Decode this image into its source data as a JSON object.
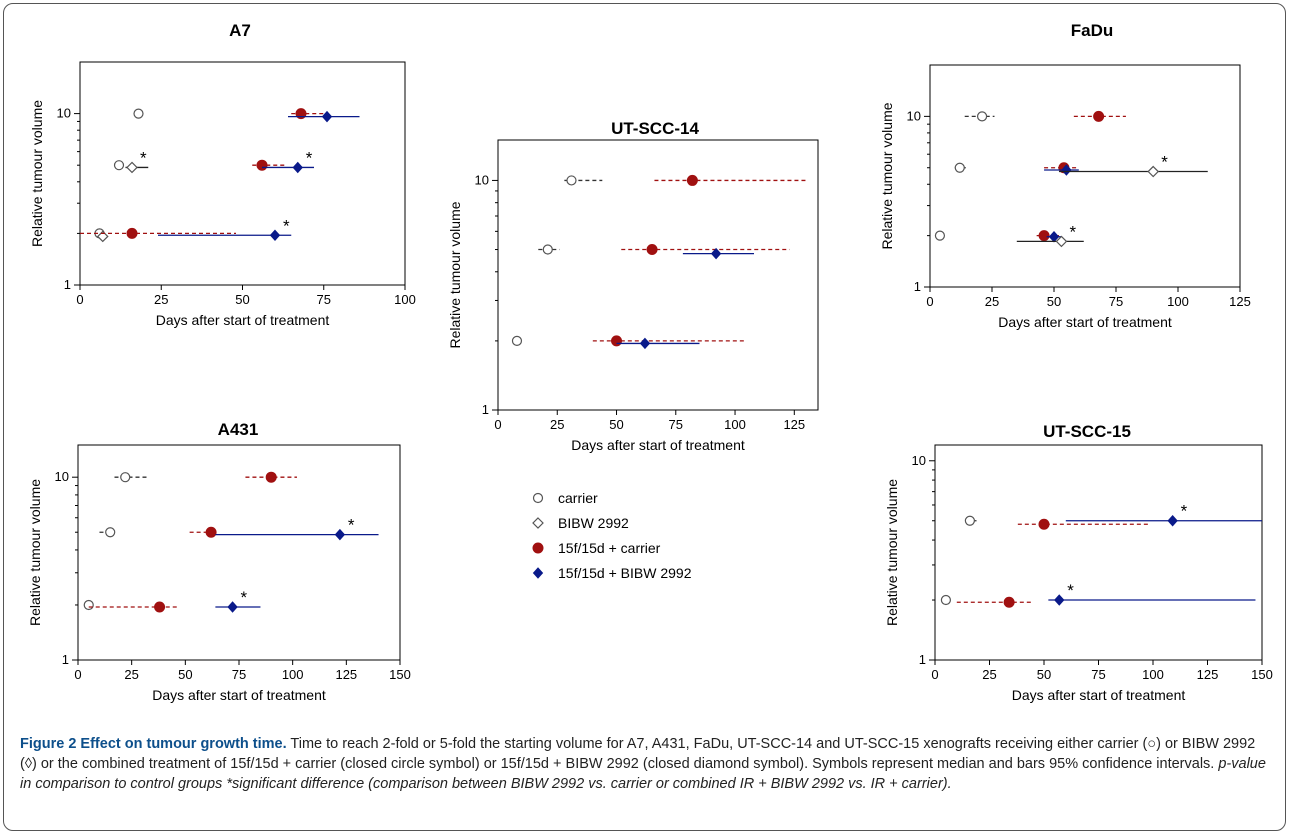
{
  "legend": {
    "items": [
      {
        "label": "carrier",
        "symbol": "open-circle",
        "color": "#555555"
      },
      {
        "label": "BIBW 2992",
        "symbol": "open-diamond",
        "color": "#555555"
      },
      {
        "label": "15f/15d + carrier",
        "symbol": "filled-circle",
        "color": "#a01010"
      },
      {
        "label": "15f/15d + BIBW 2992",
        "symbol": "filled-diamond",
        "color": "#0a1a8a"
      }
    ]
  },
  "caption": {
    "title": "Figure 2 Effect on tumour growth time.",
    "body": " Time to reach 2-fold or 5-fold the starting volume for A7, A431, FaDu, UT-SCC-14 and UT-SCC-15 xenografts receiving either carrier (○) or BIBW 2992 (◊) or the combined treatment of 15f/15d + carrier (closed circle symbol) or 15f/15d + BIBW 2992 (closed diamond symbol). Symbols represent median and bars 95% confidence intervals. ",
    "italic": "p-value in comparison to control groups *significant difference (comparison between BIBW 2992 vs. carrier or combined IR + BIBW 2992 vs. IR + carrier)."
  },
  "colors": {
    "carrier": "#555555",
    "bibw": "#555555",
    "ir_carrier": "#a01010",
    "ir_bibw": "#0a1a8a"
  },
  "chart_data": [
    {
      "id": "A7",
      "type": "scatter",
      "title": "A7",
      "xlabel": "Days after start of treatment",
      "ylabel": "Relative tumour volume",
      "xlim": [
        0,
        100
      ],
      "xticks": [
        0,
        25,
        50,
        75,
        100
      ],
      "ylim": [
        1,
        20
      ],
      "yscale": "log",
      "yticks": [
        1,
        10
      ],
      "points": [
        {
          "group": "carrier",
          "x": 18,
          "y": 10
        },
        {
          "group": "ir_carrier",
          "x": 68,
          "y": 10,
          "ci": [
            65,
            75
          ]
        },
        {
          "group": "ir_bibw",
          "x": 76,
          "y": 9.6,
          "ci": [
            64,
            86
          ]
        },
        {
          "group": "carrier",
          "x": 12,
          "y": 5
        },
        {
          "group": "bibw",
          "x": 16,
          "y": 4.85,
          "ci": [
            14,
            21
          ],
          "sig": "*"
        },
        {
          "group": "ir_carrier",
          "x": 56,
          "y": 5,
          "ci": [
            53,
            63
          ]
        },
        {
          "group": "ir_bibw",
          "x": 67,
          "y": 4.85,
          "ci": [
            56,
            72
          ],
          "sig": "*"
        },
        {
          "group": "carrier",
          "x": 6,
          "y": 2
        },
        {
          "group": "bibw",
          "x": 7,
          "y": 1.92
        },
        {
          "group": "ir_carrier",
          "x": 16,
          "y": 2,
          "ci": [
            0,
            48
          ]
        },
        {
          "group": "ir_bibw",
          "x": 60,
          "y": 1.95,
          "ci": [
            24,
            65
          ],
          "sig": "*"
        }
      ]
    },
    {
      "id": "UT-SCC-14",
      "type": "scatter",
      "title": "UT-SCC-14",
      "xlabel": "Days after start of treatment",
      "ylabel": "Relative tumour volume",
      "xlim": [
        0,
        135
      ],
      "xticks": [
        0,
        25,
        50,
        75,
        100,
        125
      ],
      "ylim": [
        1,
        15
      ],
      "yscale": "log",
      "yticks": [
        1,
        10
      ],
      "points": [
        {
          "group": "carrier",
          "x": 31,
          "y": 10,
          "ci": [
            28,
            44
          ]
        },
        {
          "group": "ir_carrier",
          "x": 82,
          "y": 10,
          "ci": [
            66,
            130
          ]
        },
        {
          "group": "carrier",
          "x": 21,
          "y": 5,
          "ci": [
            17,
            26
          ]
        },
        {
          "group": "ir_carrier",
          "x": 65,
          "y": 5,
          "ci": [
            52,
            123
          ]
        },
        {
          "group": "ir_bibw",
          "x": 92,
          "y": 4.8,
          "ci": [
            78,
            108
          ]
        },
        {
          "group": "carrier",
          "x": 8,
          "y": 2
        },
        {
          "group": "ir_carrier",
          "x": 50,
          "y": 2,
          "ci": [
            40,
            104
          ]
        },
        {
          "group": "ir_bibw",
          "x": 62,
          "y": 1.95,
          "ci": [
            50,
            85
          ]
        }
      ]
    },
    {
      "id": "FaDu",
      "type": "scatter",
      "title": "FaDu",
      "xlabel": "Days after start of treatment",
      "ylabel": "Relative tumour volume",
      "xlim": [
        0,
        125
      ],
      "xticks": [
        0,
        25,
        50,
        75,
        100,
        125
      ],
      "ylim": [
        1,
        20
      ],
      "yscale": "log",
      "yticks": [
        1,
        10
      ],
      "points": [
        {
          "group": "carrier",
          "x": 21,
          "y": 10,
          "ci": [
            14,
            26
          ]
        },
        {
          "group": "ir_carrier",
          "x": 68,
          "y": 10,
          "ci": [
            58,
            79
          ]
        },
        {
          "group": "carrier",
          "x": 12,
          "y": 5,
          "ci": [
            10,
            15
          ]
        },
        {
          "group": "ir_carrier",
          "x": 54,
          "y": 5,
          "ci": [
            46,
            59
          ]
        },
        {
          "group": "ir_bibw",
          "x": 55,
          "y": 4.85,
          "ci": [
            46,
            60
          ]
        },
        {
          "group": "bibw",
          "x": 90,
          "y": 4.75,
          "ci": [
            52,
            112
          ],
          "sig": "*"
        },
        {
          "group": "carrier",
          "x": 4,
          "y": 2
        },
        {
          "group": "ir_carrier",
          "x": 46,
          "y": 2,
          "ci": [
            43,
            52
          ]
        },
        {
          "group": "ir_bibw",
          "x": 50,
          "y": 1.97,
          "ci": [
            47,
            53
          ]
        },
        {
          "group": "bibw",
          "x": 53,
          "y": 1.85,
          "ci": [
            35,
            62
          ],
          "sig": "*"
        }
      ]
    },
    {
      "id": "A431",
      "type": "scatter",
      "title": "A431",
      "xlabel": "Days after start of treatment",
      "ylabel": "Relative tumour volume",
      "xlim": [
        0,
        150
      ],
      "xticks": [
        0,
        25,
        50,
        75,
        100,
        125,
        150
      ],
      "ylim": [
        1,
        15
      ],
      "yscale": "log",
      "yticks": [
        1,
        10
      ],
      "points": [
        {
          "group": "carrier",
          "x": 22,
          "y": 10,
          "ci": [
            17,
            33
          ]
        },
        {
          "group": "ir_carrier",
          "x": 90,
          "y": 10,
          "ci": [
            78,
            102
          ]
        },
        {
          "group": "carrier",
          "x": 15,
          "y": 5,
          "ci": [
            10,
            17
          ]
        },
        {
          "group": "ir_carrier",
          "x": 62,
          "y": 5,
          "ci": [
            52,
            65
          ]
        },
        {
          "group": "ir_bibw",
          "x": 122,
          "y": 4.85,
          "ci": [
            64,
            140
          ],
          "sig": "*"
        },
        {
          "group": "carrier",
          "x": 5,
          "y": 2
        },
        {
          "group": "ir_carrier",
          "x": 38,
          "y": 1.95,
          "ci": [
            5,
            47
          ]
        },
        {
          "group": "ir_bibw",
          "x": 72,
          "y": 1.95,
          "ci": [
            64,
            85
          ],
          "sig": "*"
        }
      ]
    },
    {
      "id": "UT-SCC-15",
      "type": "scatter",
      "title": "UT-SCC-15",
      "xlabel": "Days after start of  treatment",
      "ylabel": "Relative tumour volume",
      "xlim": [
        0,
        150
      ],
      "xticks": [
        0,
        25,
        50,
        75,
        100,
        125,
        150
      ],
      "ylim": [
        1,
        12
      ],
      "yscale": "log",
      "yticks": [
        1,
        10
      ],
      "points": [
        {
          "group": "carrier",
          "x": 16,
          "y": 5,
          "ci": [
            14,
            20
          ]
        },
        {
          "group": "ir_carrier",
          "x": 50,
          "y": 4.8,
          "ci": [
            38,
            98
          ]
        },
        {
          "group": "ir_bibw",
          "x": 109,
          "y": 5,
          "ci": [
            60,
            150
          ],
          "sig": "*"
        },
        {
          "group": "carrier",
          "x": 5,
          "y": 2
        },
        {
          "group": "ir_carrier",
          "x": 34,
          "y": 1.95,
          "ci": [
            10,
            44
          ]
        },
        {
          "group": "ir_bibw",
          "x": 57,
          "y": 2,
          "ci": [
            52,
            147
          ],
          "sig": "*"
        }
      ]
    }
  ]
}
